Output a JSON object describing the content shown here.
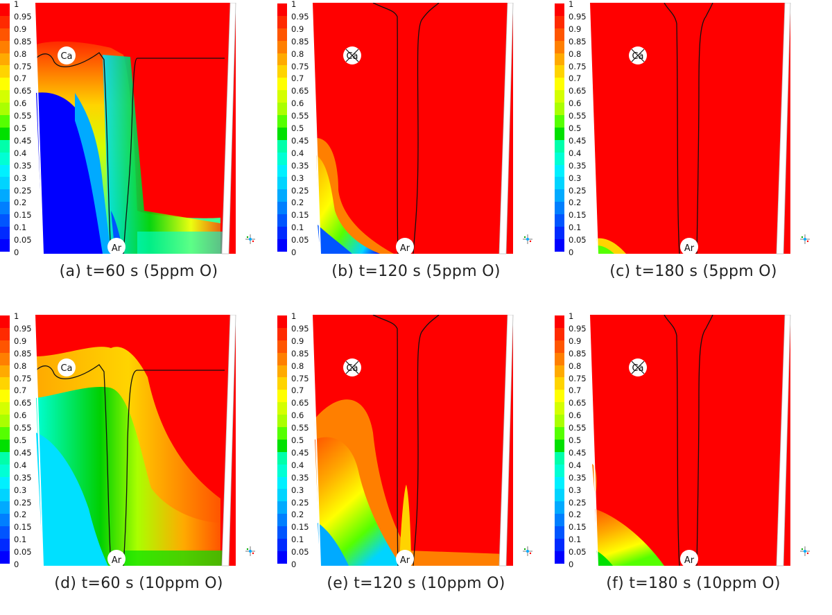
{
  "colorbar": {
    "ticks": [
      "1",
      "0.95",
      "0.9",
      "0.85",
      "0.8",
      "0.75",
      "0.7",
      "0.65",
      "0.6",
      "0.55",
      "0.5",
      "0.45",
      "0.4",
      "0.35",
      "0.3",
      "0.25",
      "0.2",
      "0.15",
      "0.1",
      "0.05",
      "0"
    ],
    "colors": [
      "#ff0000",
      "#ff2a00",
      "#ff5500",
      "#ff7f00",
      "#ffaa00",
      "#ffd400",
      "#ffff00",
      "#d4ff00",
      "#aaff00",
      "#55ff00",
      "#00e000",
      "#00ffaa",
      "#00ffd4",
      "#00f0ff",
      "#00d4ff",
      "#00aaff",
      "#007fff",
      "#0055ff",
      "#002aff",
      "#0000ff"
    ]
  },
  "labels": {
    "inlet": "Ca",
    "outlet": "Ar"
  },
  "panels": [
    {
      "caption": "(a) t=60 s (5ppm O)"
    },
    {
      "caption": "(b) t=120 s (5ppm O)"
    },
    {
      "caption": "(c) t=180 s (5ppm O)"
    },
    {
      "caption": "(d) t=60 s (10ppm O)"
    },
    {
      "caption": "(e) t=120 s (10ppm O)"
    },
    {
      "caption": "(f) t=180 s (10ppm O)"
    }
  ]
}
